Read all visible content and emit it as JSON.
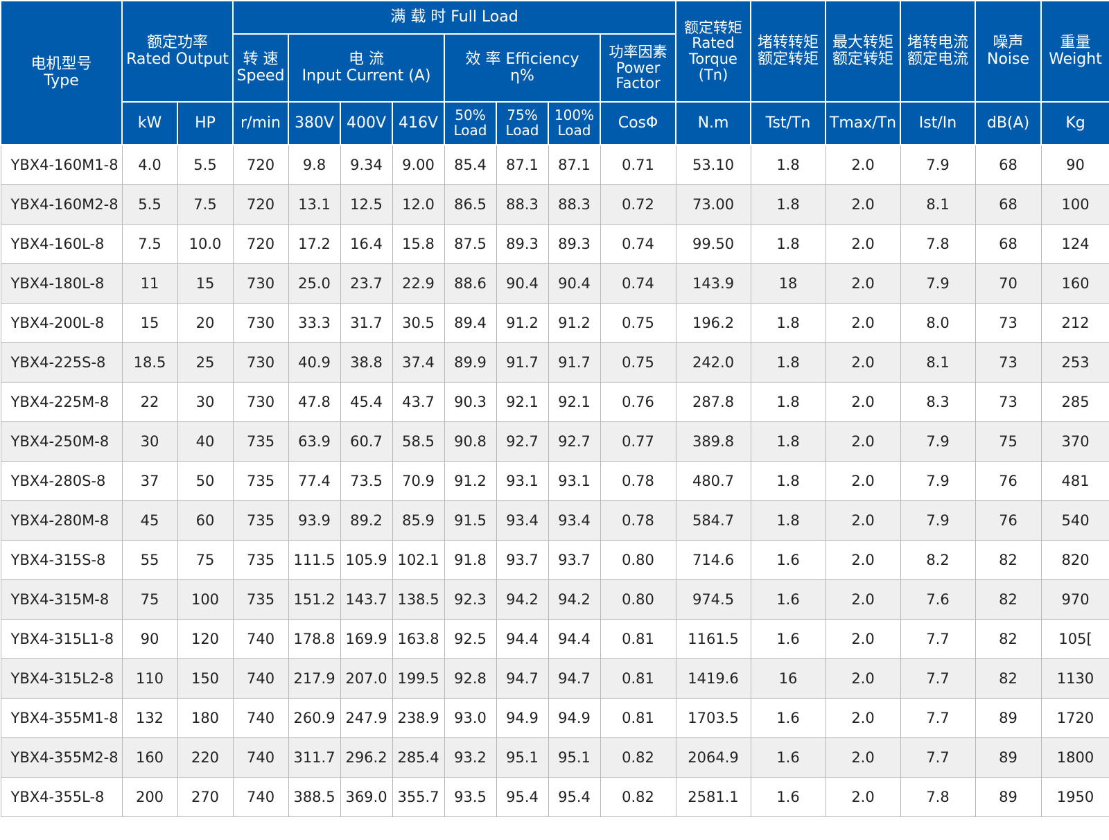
{
  "header": {
    "type_zh": "电机型号",
    "type_en": "Type",
    "rated_output_zh": "额定功率",
    "rated_output_en": "Rated Output",
    "full_load": "满 载 时   Full Load",
    "speed_zh": "转 速",
    "speed_en": "Speed",
    "current_zh": "电 流",
    "current_en": "Input Current (A)",
    "efficiency_line1": "效 率 Efficiency",
    "efficiency_line2": "η%",
    "pf_zh": "功率因素",
    "pf_en1": "Power",
    "pf_en2": "Factor",
    "torque_zh": "额定转矩",
    "torque_en1": "Rated",
    "torque_en2": "Torque",
    "torque_en3": "(Tn)",
    "locked_torque_zh1": "堵转转矩",
    "locked_torque_zh2": "额定转矩",
    "max_torque_zh1": "最大转矩",
    "max_torque_zh2": "额定转矩",
    "locked_current_zh1": "堵转电流",
    "locked_current_zh2": "额定电流",
    "noise_zh": "噪声",
    "noise_en": "Noise",
    "weight_zh": "重量",
    "weight_en": "Weight",
    "units": {
      "kw": "kW",
      "hp": "HP",
      "rpm": "r/min",
      "v380": "380V",
      "v400": "400V",
      "v416": "416V",
      "load50_a": "50%",
      "load50_b": "Load",
      "load75_a": "75%",
      "load75_b": "Load",
      "load100_a": "100%",
      "load100_b": "Load",
      "cos": "CosΦ",
      "nm": "N.m",
      "tst": "Tst/Tn",
      "tmax": "Tmax/Tn",
      "ist": "Ist/In",
      "db": "dB(A)",
      "kg": "Kg"
    }
  },
  "rows": [
    [
      "YBX4-160M1-8",
      "4.0",
      "5.5",
      "720",
      "9.8",
      "9.34",
      "9.00",
      "85.4",
      "87.1",
      "87.1",
      "0.71",
      "53.10",
      "1.8",
      "2.0",
      "7.9",
      "68",
      "90"
    ],
    [
      "YBX4-160M2-8",
      "5.5",
      "7.5",
      "720",
      "13.1",
      "12.5",
      "12.0",
      "86.5",
      "88.3",
      "88.3",
      "0.72",
      "73.00",
      "1.8",
      "2.0",
      "8.1",
      "68",
      "100"
    ],
    [
      "YBX4-160L-8",
      "7.5",
      "10.0",
      "720",
      "17.2",
      "16.4",
      "15.8",
      "87.5",
      "89.3",
      "89.3",
      "0.74",
      "99.50",
      "1.8",
      "2.0",
      "7.8",
      "68",
      "124"
    ],
    [
      "YBX4-180L-8",
      "11",
      "15",
      "730",
      "25.0",
      "23.7",
      "22.9",
      "88.6",
      "90.4",
      "90.4",
      "0.74",
      "143.9",
      "18",
      "2.0",
      "7.9",
      "70",
      "160"
    ],
    [
      "YBX4-200L-8",
      "15",
      "20",
      "730",
      "33.3",
      "31.7",
      "30.5",
      "89.4",
      "91.2",
      "91.2",
      "0.75",
      "196.2",
      "1.8",
      "2.0",
      "8.0",
      "73",
      "212"
    ],
    [
      "YBX4-225S-8",
      "18.5",
      "25",
      "730",
      "40.9",
      "38.8",
      "37.4",
      "89.9",
      "91.7",
      "91.7",
      "0.75",
      "242.0",
      "1.8",
      "2.0",
      "8.1",
      "73",
      "253"
    ],
    [
      "YBX4-225M-8",
      "22",
      "30",
      "730",
      "47.8",
      "45.4",
      "43.7",
      "90.3",
      "92.1",
      "92.1",
      "0.76",
      "287.8",
      "1.8",
      "2.0",
      "8.3",
      "73",
      "285"
    ],
    [
      "YBX4-250M-8",
      "30",
      "40",
      "735",
      "63.9",
      "60.7",
      "58.5",
      "90.8",
      "92.7",
      "92.7",
      "0.77",
      "389.8",
      "1.8",
      "2.0",
      "7.9",
      "75",
      "370"
    ],
    [
      "YBX4-280S-8",
      "37",
      "50",
      "735",
      "77.4",
      "73.5",
      "70.9",
      "91.2",
      "93.1",
      "93.1",
      "0.78",
      "480.7",
      "1.8",
      "2.0",
      "7.9",
      "76",
      "481"
    ],
    [
      "YBX4-280M-8",
      "45",
      "60",
      "735",
      "93.9",
      "89.2",
      "85.9",
      "91.5",
      "93.4",
      "93.4",
      "0.78",
      "584.7",
      "1.8",
      "2.0",
      "7.9",
      "76",
      "540"
    ],
    [
      "YBX4-315S-8",
      "55",
      "75",
      "735",
      "111.5",
      "105.9",
      "102.1",
      "91.8",
      "93.7",
      "93.7",
      "0.80",
      "714.6",
      "1.6",
      "2.0",
      "8.2",
      "82",
      "820"
    ],
    [
      "YBX4-315M-8",
      "75",
      "100",
      "735",
      "151.2",
      "143.7",
      "138.5",
      "92.3",
      "94.2",
      "94.2",
      "0.80",
      "974.5",
      "1.6",
      "2.0",
      "7.6",
      "82",
      "970"
    ],
    [
      "YBX4-315L1-8",
      "90",
      "120",
      "740",
      "178.8",
      "169.9",
      "163.8",
      "92.5",
      "94.4",
      "94.4",
      "0.81",
      "1161.5",
      "1.6",
      "2.0",
      "7.7",
      "82",
      "105["
    ],
    [
      "YBX4-315L2-8",
      "110",
      "150",
      "740",
      "217.9",
      "207.0",
      "199.5",
      "92.8",
      "94.7",
      "94.7",
      "0.81",
      "1419.6",
      "16",
      "2.0",
      "7.7",
      "82",
      "1130"
    ],
    [
      "YBX4-355M1-8",
      "132",
      "180",
      "740",
      "260.9",
      "247.9",
      "238.9",
      "93.0",
      "94.9",
      "94.9",
      "0.81",
      "1703.5",
      "1.6",
      "2.0",
      "7.7",
      "89",
      "1720"
    ],
    [
      "YBX4-355M2-8",
      "160",
      "220",
      "740",
      "311.7",
      "296.2",
      "285.4",
      "93.2",
      "95.1",
      "95.1",
      "0.82",
      "2064.9",
      "1.6",
      "2.0",
      "7.7",
      "89",
      "1800"
    ],
    [
      "YBX4-355L-8",
      "200",
      "270",
      "740",
      "388.5",
      "369.0",
      "355.7",
      "93.5",
      "95.4",
      "95.4",
      "0.82",
      "2581.1",
      "1.6",
      "2.0",
      "7.8",
      "89",
      "1950"
    ]
  ],
  "colors": {
    "header_bg": "#005bac",
    "header_text": "#ffffff",
    "row_alt_bg": "#efefef",
    "grid": "#b7b7b7"
  }
}
